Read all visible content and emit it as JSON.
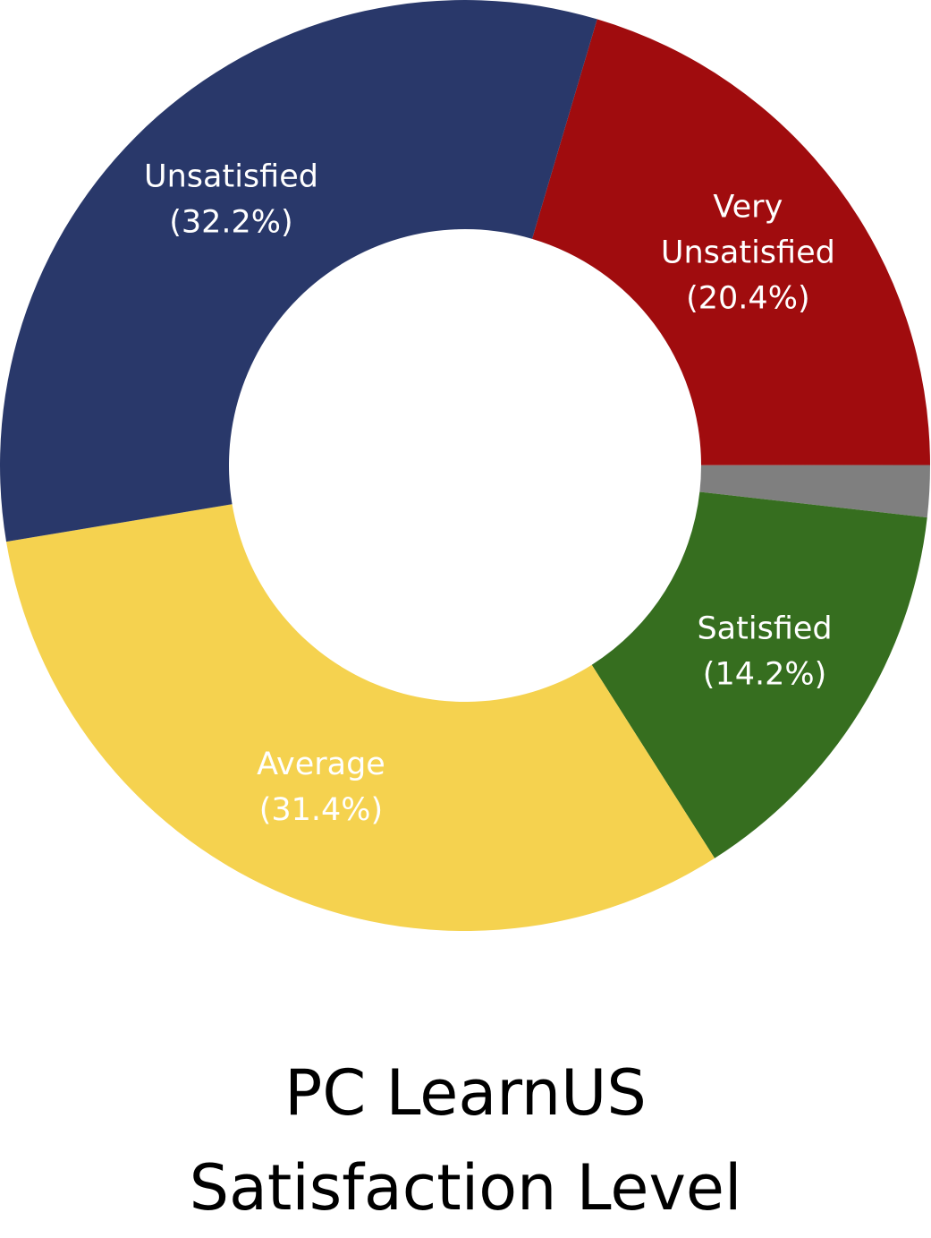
{
  "chart_data": {
    "type": "pie",
    "donut": true,
    "title_lines": [
      "PC LearnUS",
      "Satisfaction Level"
    ],
    "slices": [
      {
        "label_lines": [
          "Very",
          "Unsatisfied"
        ],
        "value": 20.4,
        "value_text": "(20.4%)",
        "color": "#a00c0e",
        "show_label": true
      },
      {
        "label_lines": [],
        "value": 1.8,
        "value_text": "",
        "color": "#7f7f7f",
        "show_label": false
      },
      {
        "label_lines": [
          "Satisfied"
        ],
        "value": 14.2,
        "value_text": "(14.2%)",
        "color": "#366e1f",
        "show_label": true
      },
      {
        "label_lines": [
          "Average"
        ],
        "value": 31.4,
        "value_text": "(31.4%)",
        "color": "#f5d24f",
        "show_label": true
      },
      {
        "label_lines": [
          "Unsatisfied"
        ],
        "value": 32.2,
        "value_text": "(32.2%)",
        "color": "#29386a",
        "show_label": true
      }
    ],
    "start_angle_deg": 16.5,
    "direction": "clockwise",
    "legend": "none"
  }
}
